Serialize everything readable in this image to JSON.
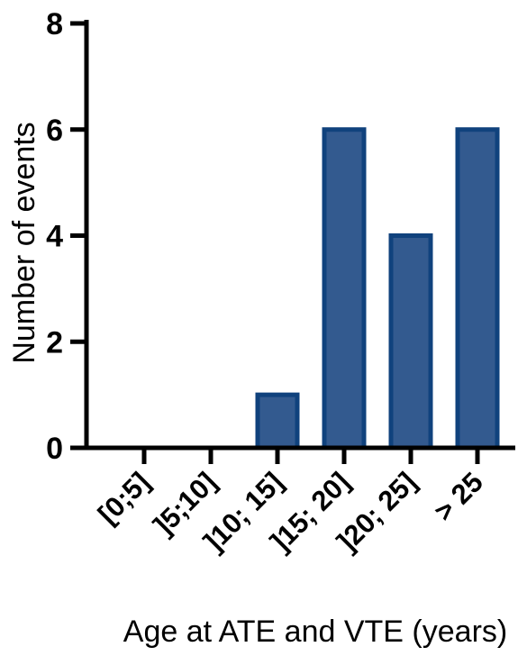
{
  "chart_data": {
    "type": "bar",
    "title": "",
    "xlabel": "Age at ATE and VTE (years)",
    "ylabel": "Number of events",
    "categories": [
      "[0;5]",
      "]5;10]",
      "]10; 15]",
      "]15; 20]",
      "]20; 25]",
      "> 25"
    ],
    "values": [
      0,
      0,
      1,
      6,
      4,
      6
    ],
    "ylim": [
      0,
      8
    ],
    "yticks": [
      "0",
      "2",
      "4",
      "6",
      "8"
    ],
    "grid": false,
    "legend": "none",
    "colors": {
      "bar_fill": "#335a8f",
      "bar_stroke": "#10427d",
      "axis": "#000000"
    }
  }
}
